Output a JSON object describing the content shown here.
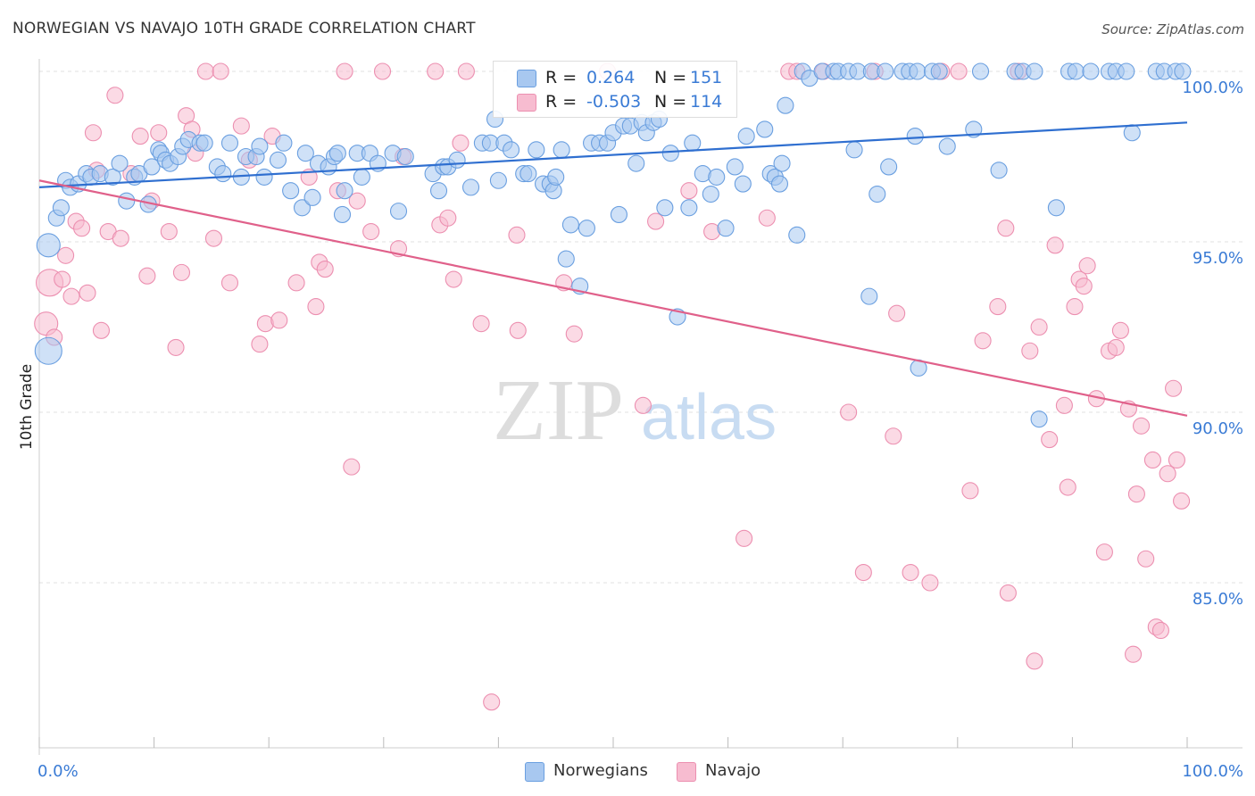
{
  "header": {
    "title": "NORWEGIAN VS NAVAJO 10TH GRADE CORRELATION CHART",
    "source": "Source: ZipAtlas.com"
  },
  "watermark": {
    "part1": "ZIP",
    "part2": "atlas"
  },
  "legend": {
    "rows": [
      {
        "r_label": "R =",
        "r_value": "0.264",
        "n_label": "N =",
        "n_value": "151"
      },
      {
        "r_label": "R =",
        "r_value": "-0.503",
        "n_label": "N =",
        "n_value": "114"
      }
    ]
  },
  "bottom_legend": [
    "Norwegians",
    "Navajo"
  ],
  "colors": {
    "blue_fill": "#a8c8f0",
    "blue_stroke": "#6a9fe0",
    "blue_line": "#2f6fd0",
    "pink_fill": "#f7bcd0",
    "pink_stroke": "#ec8fb0",
    "pink_line": "#e0608a",
    "tick_text": "#3a7bd5",
    "grid": "#e0e0e0"
  },
  "chart_data": {
    "type": "scatter",
    "title": "NORWEGIAN VS NAVAJO 10TH GRADE CORRELATION CHART",
    "xlabel": "",
    "ylabel": "10th Grade",
    "xlim": [
      0,
      100
    ],
    "ylim": [
      80.3,
      100.5
    ],
    "x_tick_labels": [
      "0.0%",
      "100.0%"
    ],
    "y_ticks": [
      85,
      90,
      95,
      100
    ],
    "y_tick_labels": [
      "85.0%",
      "90.0%",
      "95.0%",
      "100.0%"
    ],
    "grid": true,
    "legend_position": "top-center",
    "series": [
      {
        "name": "Norwegians",
        "r": 0.264,
        "n": 151,
        "trend": [
          [
            0,
            96.6
          ],
          [
            100,
            98.5
          ]
        ],
        "points": [
          [
            0.8,
            94.9
          ],
          [
            0.8,
            91.8
          ],
          [
            1.5,
            95.7
          ],
          [
            1.9,
            96.0
          ],
          [
            2.3,
            96.8
          ],
          [
            2.7,
            96.6
          ],
          [
            3.4,
            96.7
          ],
          [
            4.1,
            97.0
          ],
          [
            4.5,
            96.9
          ],
          [
            5.3,
            97.0
          ],
          [
            6.4,
            96.9
          ],
          [
            7.0,
            97.3
          ],
          [
            7.6,
            96.2
          ],
          [
            8.3,
            96.9
          ],
          [
            8.7,
            97.0
          ],
          [
            9.5,
            96.1
          ],
          [
            9.8,
            97.2
          ],
          [
            10.4,
            97.7
          ],
          [
            10.6,
            97.6
          ],
          [
            11.0,
            97.4
          ],
          [
            11.4,
            97.3
          ],
          [
            12.1,
            97.5
          ],
          [
            12.5,
            97.8
          ],
          [
            13.0,
            98.0
          ],
          [
            14.0,
            97.9
          ],
          [
            14.4,
            97.9
          ],
          [
            15.5,
            97.2
          ],
          [
            16.0,
            97.0
          ],
          [
            16.6,
            97.9
          ],
          [
            17.6,
            96.9
          ],
          [
            18.0,
            97.5
          ],
          [
            18.9,
            97.5
          ],
          [
            19.2,
            97.8
          ],
          [
            19.6,
            96.9
          ],
          [
            20.8,
            97.4
          ],
          [
            21.3,
            97.9
          ],
          [
            21.9,
            96.5
          ],
          [
            22.9,
            96.0
          ],
          [
            23.2,
            97.6
          ],
          [
            23.8,
            96.3
          ],
          [
            24.3,
            97.3
          ],
          [
            25.2,
            97.2
          ],
          [
            25.7,
            97.5
          ],
          [
            26.0,
            97.6
          ],
          [
            26.4,
            95.8
          ],
          [
            26.6,
            96.5
          ],
          [
            27.7,
            97.6
          ],
          [
            28.1,
            96.9
          ],
          [
            28.8,
            97.6
          ],
          [
            29.5,
            97.3
          ],
          [
            30.8,
            97.6
          ],
          [
            31.3,
            95.9
          ],
          [
            31.9,
            97.5
          ],
          [
            34.3,
            97.0
          ],
          [
            34.8,
            96.5
          ],
          [
            35.2,
            97.2
          ],
          [
            35.6,
            97.2
          ],
          [
            36.4,
            97.4
          ],
          [
            37.6,
            96.6
          ],
          [
            38.6,
            97.9
          ],
          [
            39.3,
            97.9
          ],
          [
            39.7,
            98.6
          ],
          [
            40.0,
            96.8
          ],
          [
            40.5,
            97.9
          ],
          [
            41.1,
            97.7
          ],
          [
            42.2,
            97.0
          ],
          [
            42.6,
            97.0
          ],
          [
            43.3,
            97.7
          ],
          [
            43.9,
            96.7
          ],
          [
            44.5,
            96.7
          ],
          [
            44.8,
            96.5
          ],
          [
            45.0,
            96.9
          ],
          [
            45.5,
            97.7
          ],
          [
            45.9,
            94.5
          ],
          [
            46.3,
            95.5
          ],
          [
            47.1,
            93.7
          ],
          [
            47.7,
            95.4
          ],
          [
            48.1,
            97.9
          ],
          [
            48.8,
            97.9
          ],
          [
            49.5,
            97.9
          ],
          [
            50.0,
            98.2
          ],
          [
            50.5,
            95.8
          ],
          [
            50.9,
            98.4
          ],
          [
            51.5,
            98.4
          ],
          [
            52.0,
            97.3
          ],
          [
            52.5,
            98.5
          ],
          [
            52.9,
            98.2
          ],
          [
            53.5,
            98.5
          ],
          [
            54.0,
            98.6
          ],
          [
            54.5,
            96.0
          ],
          [
            55.0,
            97.6
          ],
          [
            55.6,
            92.8
          ],
          [
            56.6,
            96.0
          ],
          [
            56.9,
            97.9
          ],
          [
            57.8,
            97.0
          ],
          [
            58.5,
            96.4
          ],
          [
            59.0,
            96.9
          ],
          [
            59.8,
            95.4
          ],
          [
            60.6,
            97.2
          ],
          [
            61.3,
            96.7
          ],
          [
            61.6,
            98.1
          ],
          [
            63.2,
            98.3
          ],
          [
            63.7,
            97.0
          ],
          [
            64.1,
            96.9
          ],
          [
            64.5,
            96.7
          ],
          [
            64.7,
            97.3
          ],
          [
            65.0,
            99.0
          ],
          [
            66.0,
            95.2
          ],
          [
            66.5,
            100.0
          ],
          [
            67.1,
            99.8
          ],
          [
            68.2,
            100.0
          ],
          [
            69.2,
            100.0
          ],
          [
            69.6,
            100.0
          ],
          [
            70.5,
            100.0
          ],
          [
            71.0,
            97.7
          ],
          [
            71.3,
            100.0
          ],
          [
            72.5,
            100.0
          ],
          [
            73.0,
            96.4
          ],
          [
            73.7,
            100.0
          ],
          [
            74.0,
            97.2
          ],
          [
            75.2,
            100.0
          ],
          [
            75.8,
            100.0
          ],
          [
            76.5,
            100.0
          ],
          [
            77.8,
            100.0
          ],
          [
            78.4,
            100.0
          ],
          [
            79.1,
            97.8
          ],
          [
            82.0,
            100.0
          ],
          [
            83.6,
            97.1
          ],
          [
            85.0,
            100.0
          ],
          [
            85.7,
            100.0
          ],
          [
            86.7,
            100.0
          ],
          [
            87.1,
            89.8
          ],
          [
            89.7,
            100.0
          ],
          [
            90.3,
            100.0
          ],
          [
            91.6,
            100.0
          ],
          [
            93.2,
            100.0
          ],
          [
            93.8,
            100.0
          ],
          [
            94.7,
            100.0
          ],
          [
            95.2,
            98.2
          ],
          [
            97.3,
            100.0
          ],
          [
            98.0,
            100.0
          ],
          [
            99.0,
            100.0
          ],
          [
            99.6,
            100.0
          ],
          [
            81.4,
            98.3
          ],
          [
            88.6,
            96.0
          ],
          [
            76.6,
            91.3
          ],
          [
            76.3,
            98.1
          ],
          [
            72.3,
            93.4
          ]
        ]
      },
      {
        "name": "Navajo",
        "r": -0.503,
        "n": 114,
        "trend": [
          [
            0,
            96.8
          ],
          [
            100,
            89.9
          ]
        ],
        "points": [
          [
            0.6,
            92.6
          ],
          [
            0.9,
            93.8
          ],
          [
            1.3,
            92.2
          ],
          [
            2.0,
            93.9
          ],
          [
            2.3,
            94.6
          ],
          [
            2.8,
            93.4
          ],
          [
            3.2,
            95.6
          ],
          [
            3.7,
            95.4
          ],
          [
            4.2,
            93.5
          ],
          [
            4.7,
            98.2
          ],
          [
            5.0,
            97.1
          ],
          [
            5.4,
            92.4
          ],
          [
            6.0,
            95.3
          ],
          [
            6.6,
            99.3
          ],
          [
            7.1,
            95.1
          ],
          [
            8.0,
            97.0
          ],
          [
            8.8,
            98.1
          ],
          [
            9.4,
            94.0
          ],
          [
            9.8,
            96.2
          ],
          [
            10.4,
            98.2
          ],
          [
            11.3,
            95.3
          ],
          [
            11.9,
            91.9
          ],
          [
            12.4,
            94.1
          ],
          [
            12.8,
            98.7
          ],
          [
            13.3,
            98.3
          ],
          [
            14.5,
            100.0
          ],
          [
            15.2,
            95.1
          ],
          [
            15.8,
            100.0
          ],
          [
            16.6,
            93.8
          ],
          [
            17.6,
            98.4
          ],
          [
            18.3,
            97.4
          ],
          [
            19.2,
            92.0
          ],
          [
            19.7,
            92.6
          ],
          [
            20.3,
            98.1
          ],
          [
            20.9,
            92.7
          ],
          [
            22.4,
            93.8
          ],
          [
            23.5,
            96.9
          ],
          [
            24.1,
            93.1
          ],
          [
            24.4,
            94.4
          ],
          [
            24.9,
            94.2
          ],
          [
            26.0,
            96.5
          ],
          [
            26.6,
            100.0
          ],
          [
            27.2,
            88.4
          ],
          [
            27.7,
            96.2
          ],
          [
            28.9,
            95.3
          ],
          [
            29.9,
            100.0
          ],
          [
            31.3,
            94.8
          ],
          [
            34.5,
            100.0
          ],
          [
            34.9,
            95.5
          ],
          [
            35.6,
            95.7
          ],
          [
            36.1,
            93.9
          ],
          [
            36.7,
            97.9
          ],
          [
            37.2,
            100.0
          ],
          [
            38.5,
            92.6
          ],
          [
            39.4,
            81.5
          ],
          [
            41.7,
            92.4
          ],
          [
            45.7,
            93.8
          ],
          [
            46.6,
            92.3
          ],
          [
            49.5,
            100.0
          ],
          [
            52.6,
            90.2
          ],
          [
            53.7,
            95.6
          ],
          [
            56.6,
            96.5
          ],
          [
            58.6,
            95.3
          ],
          [
            61.4,
            86.3
          ],
          [
            63.4,
            95.7
          ],
          [
            65.3,
            100.0
          ],
          [
            66.0,
            100.0
          ],
          [
            68.3,
            100.0
          ],
          [
            70.5,
            90.0
          ],
          [
            71.8,
            85.3
          ],
          [
            72.8,
            100.0
          ],
          [
            74.4,
            89.3
          ],
          [
            74.7,
            92.9
          ],
          [
            75.9,
            85.3
          ],
          [
            77.6,
            85.0
          ],
          [
            78.6,
            100.0
          ],
          [
            80.1,
            100.0
          ],
          [
            81.1,
            87.7
          ],
          [
            82.2,
            92.1
          ],
          [
            83.5,
            93.1
          ],
          [
            84.2,
            95.4
          ],
          [
            84.4,
            84.7
          ],
          [
            85.3,
            100.0
          ],
          [
            86.3,
            91.8
          ],
          [
            86.7,
            82.7
          ],
          [
            87.1,
            92.5
          ],
          [
            88.0,
            89.2
          ],
          [
            88.5,
            94.9
          ],
          [
            89.3,
            90.2
          ],
          [
            89.6,
            87.8
          ],
          [
            90.2,
            93.1
          ],
          [
            90.6,
            93.9
          ],
          [
            91.0,
            93.7
          ],
          [
            91.3,
            94.3
          ],
          [
            92.1,
            90.4
          ],
          [
            92.8,
            85.9
          ],
          [
            93.2,
            91.8
          ],
          [
            93.8,
            91.9
          ],
          [
            94.2,
            92.4
          ],
          [
            94.9,
            90.1
          ],
          [
            95.3,
            82.9
          ],
          [
            95.6,
            87.6
          ],
          [
            96.0,
            89.6
          ],
          [
            96.4,
            85.7
          ],
          [
            97.0,
            88.6
          ],
          [
            97.3,
            83.7
          ],
          [
            97.7,
            83.6
          ],
          [
            98.3,
            88.2
          ],
          [
            98.8,
            90.7
          ],
          [
            99.1,
            88.6
          ],
          [
            99.5,
            87.4
          ],
          [
            13.6,
            97.6
          ],
          [
            31.7,
            97.5
          ],
          [
            41.6,
            95.2
          ]
        ]
      }
    ]
  }
}
